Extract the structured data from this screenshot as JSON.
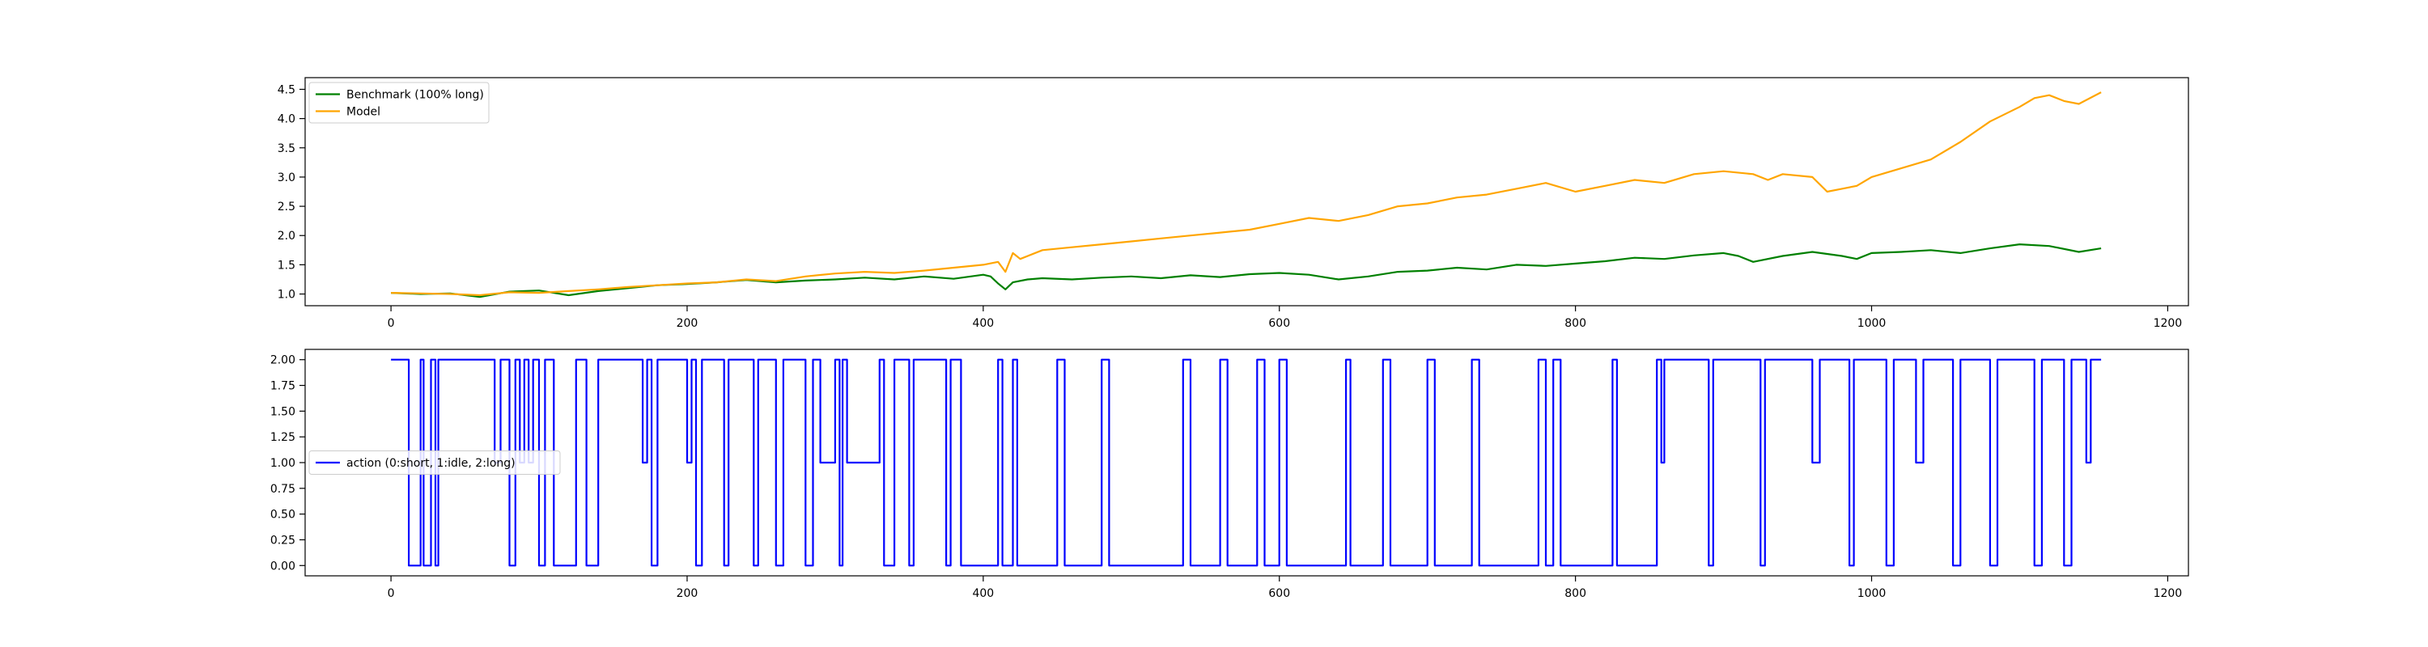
{
  "chart_data": [
    {
      "type": "line",
      "title": "",
      "xlabel": "",
      "ylabel": "",
      "xlim": [
        -58,
        1214
      ],
      "ylim": [
        0.8,
        4.7
      ],
      "xticks": [
        0,
        200,
        400,
        600,
        800,
        1000,
        1200
      ],
      "xtick_labels": [
        "0",
        "200",
        "400",
        "600",
        "800",
        "1000",
        "1200"
      ],
      "yticks": [
        1.0,
        1.5,
        2.0,
        2.5,
        3.0,
        3.5,
        4.0,
        4.5
      ],
      "ytick_labels": [
        "1.0",
        "1.5",
        "2.0",
        "2.5",
        "3.0",
        "3.5",
        "4.0",
        "4.5"
      ],
      "grid": false,
      "legend_position": "upper left",
      "series": [
        {
          "name": "Benchmark (100% long)",
          "color": "#008000",
          "x": [
            0,
            20,
            40,
            60,
            80,
            100,
            120,
            140,
            160,
            180,
            200,
            220,
            240,
            260,
            280,
            300,
            320,
            340,
            360,
            380,
            400,
            405,
            410,
            415,
            420,
            430,
            440,
            460,
            480,
            500,
            520,
            540,
            560,
            580,
            600,
            620,
            640,
            660,
            680,
            700,
            720,
            740,
            760,
            780,
            800,
            820,
            840,
            860,
            880,
            900,
            910,
            920,
            940,
            960,
            980,
            990,
            1000,
            1020,
            1040,
            1060,
            1080,
            1100,
            1120,
            1140,
            1155
          ],
          "y": [
            1.02,
            1.0,
            1.01,
            0.95,
            1.04,
            1.06,
            0.98,
            1.05,
            1.1,
            1.15,
            1.17,
            1.2,
            1.24,
            1.2,
            1.23,
            1.25,
            1.28,
            1.25,
            1.3,
            1.26,
            1.33,
            1.3,
            1.18,
            1.08,
            1.2,
            1.25,
            1.27,
            1.25,
            1.28,
            1.3,
            1.27,
            1.32,
            1.29,
            1.34,
            1.36,
            1.33,
            1.25,
            1.3,
            1.38,
            1.4,
            1.45,
            1.42,
            1.5,
            1.48,
            1.52,
            1.56,
            1.62,
            1.6,
            1.66,
            1.7,
            1.65,
            1.55,
            1.65,
            1.72,
            1.65,
            1.6,
            1.7,
            1.72,
            1.75,
            1.7,
            1.78,
            1.85,
            1.82,
            1.72,
            1.78
          ]
        },
        {
          "name": "Model",
          "color": "#FFA500",
          "x": [
            0,
            20,
            40,
            60,
            80,
            100,
            120,
            140,
            160,
            180,
            200,
            220,
            240,
            260,
            280,
            300,
            320,
            340,
            360,
            380,
            400,
            410,
            415,
            420,
            425,
            440,
            460,
            480,
            500,
            520,
            540,
            560,
            580,
            600,
            620,
            640,
            660,
            680,
            700,
            720,
            740,
            760,
            780,
            800,
            820,
            840,
            860,
            880,
            900,
            920,
            930,
            940,
            960,
            970,
            980,
            990,
            1000,
            1020,
            1040,
            1060,
            1080,
            1100,
            1110,
            1120,
            1130,
            1140,
            1155
          ],
          "y": [
            1.02,
            1.01,
            1.0,
            0.98,
            1.03,
            1.02,
            1.05,
            1.08,
            1.12,
            1.15,
            1.18,
            1.2,
            1.25,
            1.22,
            1.3,
            1.35,
            1.38,
            1.36,
            1.4,
            1.45,
            1.5,
            1.55,
            1.38,
            1.7,
            1.6,
            1.75,
            1.8,
            1.85,
            1.9,
            1.95,
            2.0,
            2.05,
            2.1,
            2.2,
            2.3,
            2.25,
            2.35,
            2.5,
            2.55,
            2.65,
            2.7,
            2.8,
            2.9,
            2.75,
            2.85,
            2.95,
            2.9,
            3.05,
            3.1,
            3.05,
            2.95,
            3.05,
            3.0,
            2.75,
            2.8,
            2.85,
            3.0,
            3.15,
            3.3,
            3.6,
            3.95,
            4.2,
            4.35,
            4.4,
            4.3,
            4.25,
            4.45
          ]
        }
      ]
    },
    {
      "type": "line",
      "title": "",
      "xlabel": "",
      "ylabel": "",
      "xlim": [
        -58,
        1214
      ],
      "ylim": [
        -0.1,
        2.1
      ],
      "xticks": [
        0,
        200,
        400,
        600,
        800,
        1000,
        1200
      ],
      "xtick_labels": [
        "0",
        "200",
        "400",
        "600",
        "800",
        "1000",
        "1200"
      ],
      "yticks": [
        0.0,
        0.25,
        0.5,
        0.75,
        1.0,
        1.25,
        1.5,
        1.75,
        2.0
      ],
      "ytick_labels": [
        "0.00",
        "0.25",
        "0.50",
        "0.75",
        "1.00",
        "1.25",
        "1.50",
        "1.75",
        "2.00"
      ],
      "grid": false,
      "legend_position": "center left",
      "series": [
        {
          "name": "action (0:short, 1:idle, 2:long)",
          "color": "#0000FF",
          "step": true,
          "x": [
            0,
            12,
            20,
            22,
            27,
            30,
            32,
            70,
            74,
            80,
            84,
            87,
            90,
            93,
            96,
            100,
            104,
            110,
            125,
            132,
            140,
            170,
            173,
            176,
            180,
            200,
            203,
            206,
            210,
            225,
            228,
            245,
            248,
            260,
            265,
            280,
            285,
            290,
            300,
            303,
            305,
            308,
            330,
            333,
            340,
            350,
            353,
            375,
            378,
            385,
            410,
            413,
            420,
            423,
            450,
            455,
            480,
            485,
            535,
            540,
            560,
            565,
            585,
            590,
            600,
            605,
            645,
            648,
            670,
            675,
            700,
            705,
            730,
            735,
            775,
            780,
            785,
            790,
            825,
            828,
            855,
            858,
            860,
            890,
            893,
            925,
            928,
            960,
            965,
            985,
            988,
            1010,
            1015,
            1030,
            1035,
            1055,
            1060,
            1080,
            1085,
            1110,
            1115,
            1130,
            1135,
            1145,
            1148,
            1155
          ],
          "y": [
            2,
            0,
            2,
            0,
            2,
            0,
            2,
            1,
            2,
            0,
            2,
            1,
            2,
            1,
            2,
            0,
            2,
            0,
            2,
            0,
            2,
            1,
            2,
            0,
            2,
            1,
            2,
            0,
            2,
            0,
            2,
            0,
            2,
            0,
            2,
            0,
            2,
            1,
            2,
            0,
            2,
            1,
            2,
            0,
            2,
            0,
            2,
            0,
            2,
            0,
            2,
            0,
            2,
            0,
            2,
            0,
            2,
            0,
            2,
            0,
            2,
            0,
            2,
            0,
            2,
            0,
            2,
            0,
            2,
            0,
            2,
            0,
            2,
            0,
            2,
            0,
            2,
            0,
            2,
            0,
            2,
            1,
            2,
            0,
            2,
            0,
            2,
            1,
            2,
            0,
            2,
            0,
            2,
            1,
            2,
            0,
            2,
            0,
            2,
            0,
            2,
            0,
            2,
            1,
            2,
            2
          ]
        }
      ]
    }
  ]
}
